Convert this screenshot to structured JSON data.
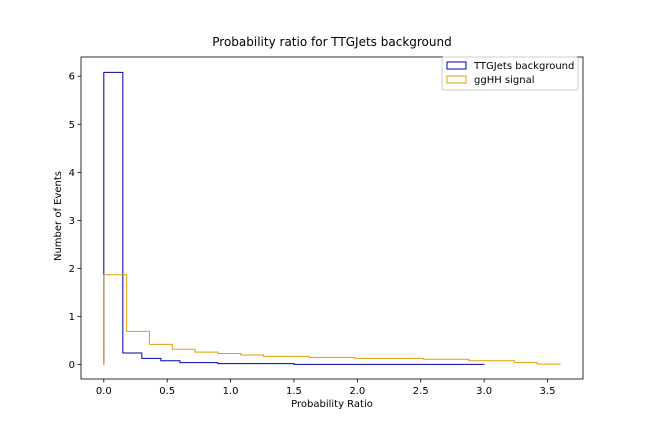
{
  "chart_data": {
    "type": "step-histogram",
    "title": "Probability ratio for TTGJets background",
    "xlabel": "Probability Ratio",
    "ylabel": "Number of Events",
    "xlim": [
      -0.18,
      3.78
    ],
    "ylim": [
      -0.3,
      6.4
    ],
    "xticks": [
      0.0,
      0.5,
      1.0,
      1.5,
      2.0,
      2.5,
      3.0,
      3.5
    ],
    "xtick_labels": [
      "0.0",
      "0.5",
      "1.0",
      "1.5",
      "2.0",
      "2.5",
      "3.0",
      "3.5"
    ],
    "yticks": [
      0,
      1,
      2,
      3,
      4,
      5,
      6
    ],
    "ytick_labels": [
      "0",
      "1",
      "2",
      "3",
      "4",
      "5",
      "6"
    ],
    "grid": false,
    "legend_position": "top-right",
    "series": [
      {
        "name": "TTGJets background",
        "color": "#0000aa",
        "bin_edges": [
          0.0,
          0.15,
          0.3,
          0.45,
          0.6,
          0.9,
          1.5,
          3.0
        ],
        "values": [
          6.08,
          0.24,
          0.13,
          0.08,
          0.04,
          0.02,
          0.005
        ]
      },
      {
        "name": "ggHH signal",
        "color": "#e69f00",
        "bin_edges": [
          0.0,
          0.18,
          0.36,
          0.54,
          0.72,
          0.9,
          1.08,
          1.26,
          1.62,
          1.98,
          2.52,
          2.88,
          3.24,
          3.42,
          3.6
        ],
        "values": [
          1.87,
          0.69,
          0.42,
          0.32,
          0.26,
          0.23,
          0.2,
          0.17,
          0.15,
          0.13,
          0.11,
          0.08,
          0.04,
          0.01
        ]
      }
    ]
  }
}
